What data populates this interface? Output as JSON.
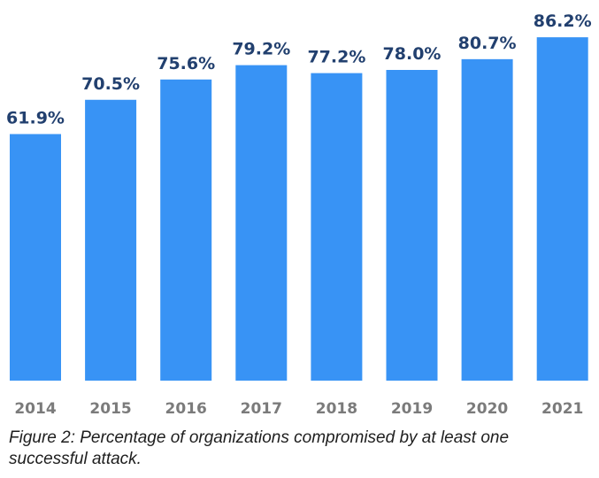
{
  "chart_data": {
    "type": "bar",
    "title": "",
    "xlabel": "",
    "ylabel": "",
    "ylim": [
      0,
      95
    ],
    "grid": false,
    "categories": [
      "2014",
      "2015",
      "2016",
      "2017",
      "2018",
      "2019",
      "2020",
      "2021"
    ],
    "values": [
      61.9,
      70.5,
      75.6,
      79.2,
      77.2,
      78.0,
      80.7,
      86.2
    ],
    "data_labels": [
      "61.9%",
      "70.5%",
      "75.6%",
      "79.2%",
      "77.2%",
      "78.0%",
      "80.7%",
      "86.2%"
    ],
    "bar_color": "#3893f5",
    "label_color": "#22406f",
    "tick_color": "#7b7b7b"
  },
  "caption": "Figure 2: Percentage of organizations compromised by at least one successful attack."
}
